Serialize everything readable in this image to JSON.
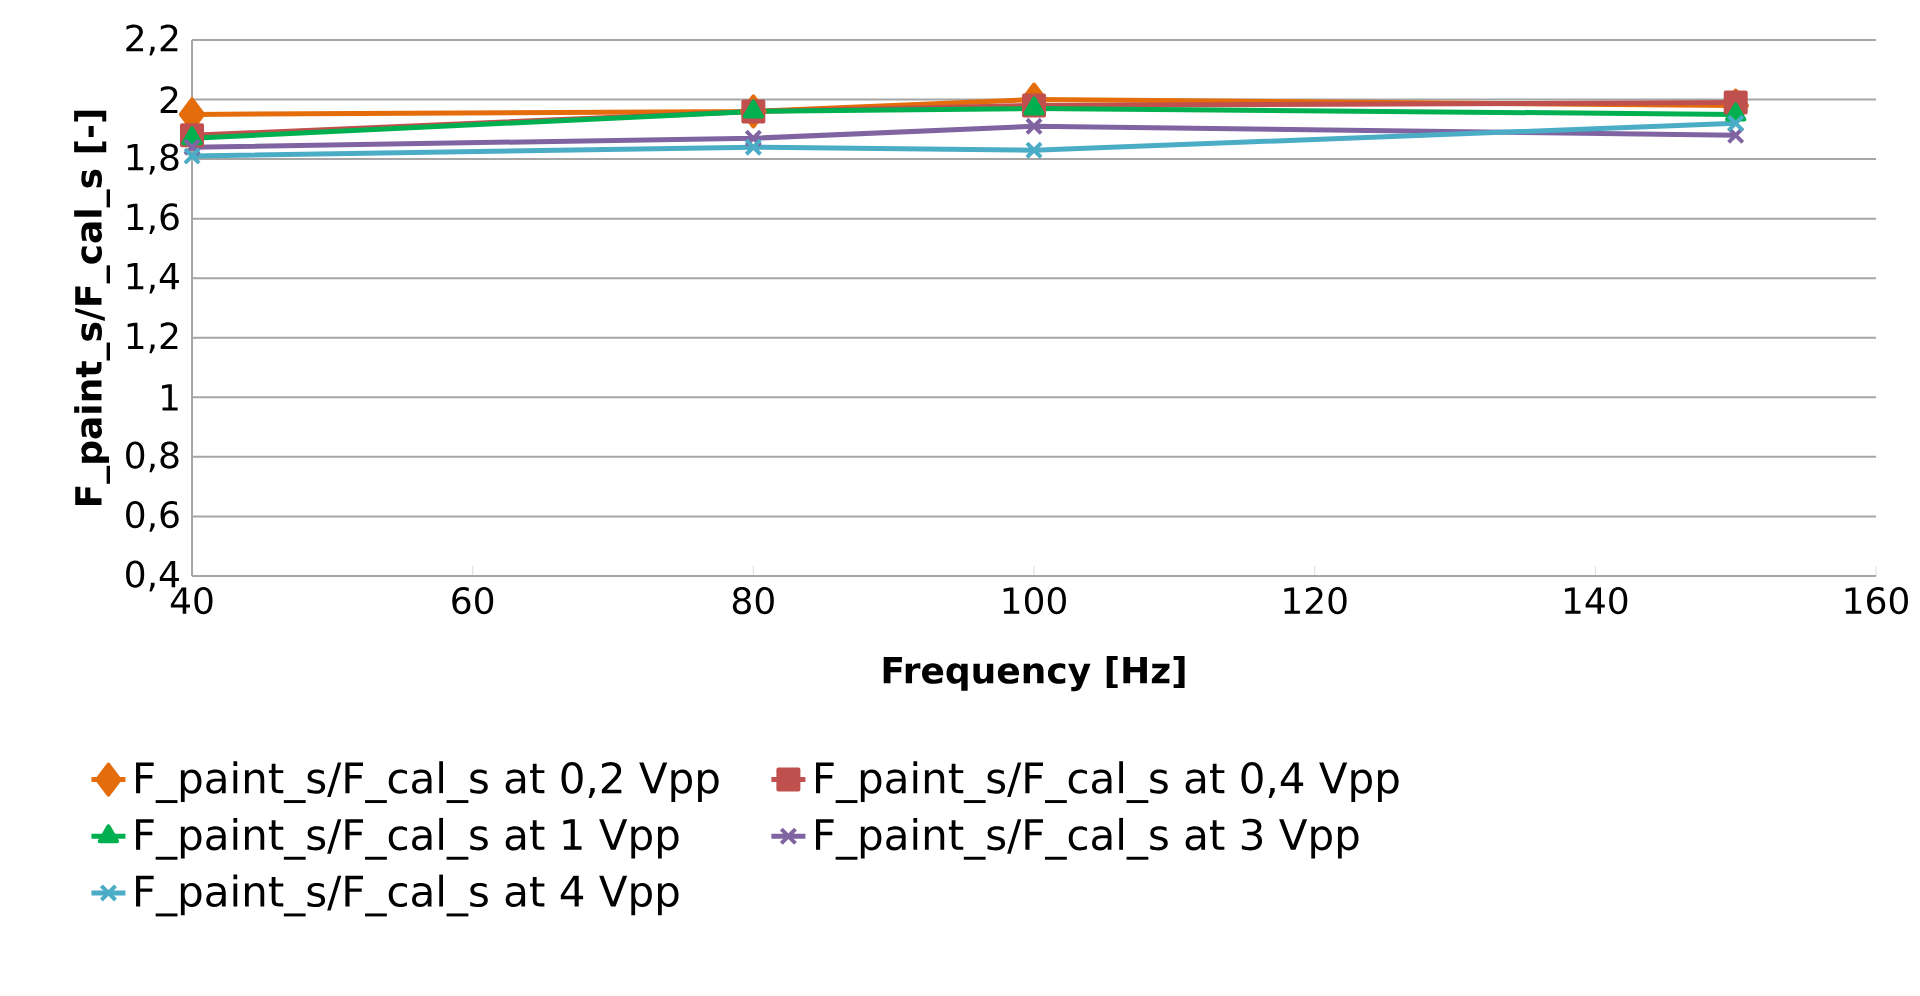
{
  "chart_data": {
    "type": "line",
    "xlabel": "Frequency [Hz]",
    "ylabel": "F_paint_s/F_cal_s [-]",
    "x": [
      40,
      80,
      100,
      150
    ],
    "series": [
      {
        "name": "F_paint_s/F_cal_s at 0,2 Vpp",
        "color": "#e46c0a",
        "marker": "diamond",
        "values": [
          1.95,
          1.96,
          2.0,
          1.98
        ]
      },
      {
        "name": "F_paint_s/F_cal_s at 0,4 Vpp",
        "color": "#c0504d",
        "marker": "square",
        "values": [
          1.88,
          1.96,
          1.98,
          1.99
        ]
      },
      {
        "name": "F_paint_s/F_cal_s at 1 Vpp",
        "color": "#00b050",
        "marker": "triangle",
        "values": [
          1.87,
          1.96,
          1.97,
          1.95
        ]
      },
      {
        "name": "F_paint_s/F_cal_s at 3 Vpp",
        "color": "#8064a2",
        "marker": "cross",
        "values": [
          1.84,
          1.87,
          1.91,
          1.88
        ]
      },
      {
        "name": "F_paint_s/F_cal_s at 4 Vpp",
        "color": "#4bacc6",
        "marker": "cross",
        "values": [
          1.81,
          1.84,
          1.83,
          1.92
        ]
      }
    ],
    "xlim": [
      40,
      160
    ],
    "xticks": [
      40,
      60,
      80,
      100,
      120,
      140,
      160
    ],
    "ylim": [
      0.4,
      2.2
    ],
    "yticks": [
      {
        "value": 0.4,
        "label": "0,4"
      },
      {
        "value": 0.6,
        "label": "0,6"
      },
      {
        "value": 0.8,
        "label": "0,8"
      },
      1,
      {
        "value": 1.2,
        "label": "1,2"
      },
      {
        "value": 1.4,
        "label": "1,4"
      },
      {
        "value": 1.6,
        "label": "1,6"
      },
      {
        "value": 1.8,
        "label": "1,8"
      },
      2,
      {
        "value": 2.2,
        "label": "2,2"
      }
    ],
    "grid": "y",
    "legend": "bottom",
    "line_style": "solid"
  }
}
